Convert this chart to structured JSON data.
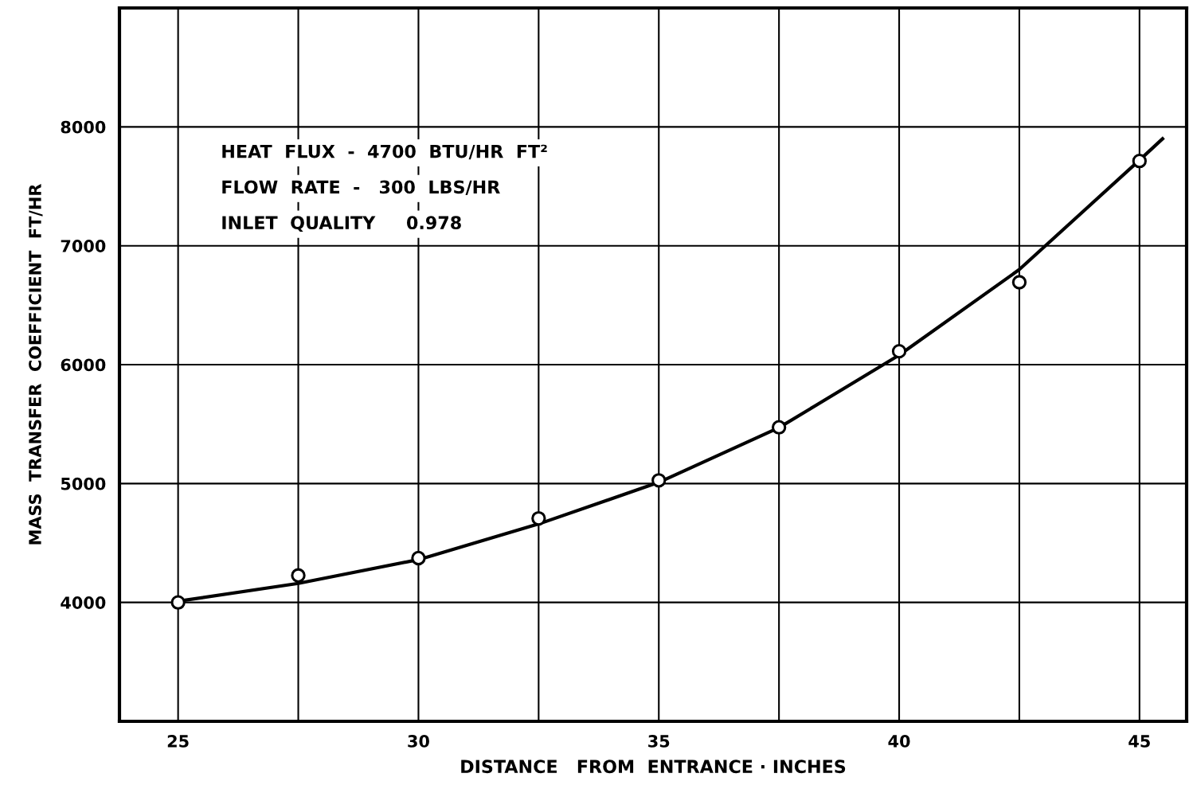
{
  "chart_data": {
    "type": "line",
    "xlabel": "DISTANCE   FROM  ENTRANCE · INCHES",
    "ylabel": "MASS  TRANSFER  COEFFICIENT  FT/HR",
    "annotations": [
      "HEAT  FLUX  -  4700  BTU/HR  FT²",
      "FLOW  RATE  -   300  LBS/HR",
      "INLET  QUALITY     0.978"
    ],
    "xlim": [
      23.78,
      45.98
    ],
    "ylim": [
      3000,
      9000
    ],
    "xticks": [
      25,
      {
        "value": 27.5,
        "label": null
      },
      30,
      {
        "value": 32.5,
        "label": null
      },
      35,
      {
        "value": 37.5,
        "label": null
      },
      40,
      {
        "value": 42.5,
        "label": null
      },
      45
    ],
    "yticks": [
      {
        "value": 3000,
        "label": null
      },
      4000,
      5000,
      6000,
      7000,
      8000,
      {
        "value": 9000,
        "label": null
      }
    ],
    "grid": true,
    "series": [
      {
        "type": "scatter",
        "marker": "circle",
        "color": "#000000",
        "x": [
          25,
          27.5,
          30,
          32.5,
          35,
          37.5,
          40,
          42.5,
          45
        ],
        "values": [
          4000,
          4227,
          4373,
          4707,
          5027,
          5473,
          6113,
          6693,
          7713
        ]
      },
      {
        "color": "#000000",
        "x": [
          25,
          27.5,
          30,
          32.5,
          35,
          37.5,
          40,
          42.5,
          45,
          45.48
        ],
        "values": [
          4010,
          4160,
          4360,
          4660,
          5010,
          5470,
          6080,
          6800,
          7720,
          7900
        ]
      }
    ]
  }
}
